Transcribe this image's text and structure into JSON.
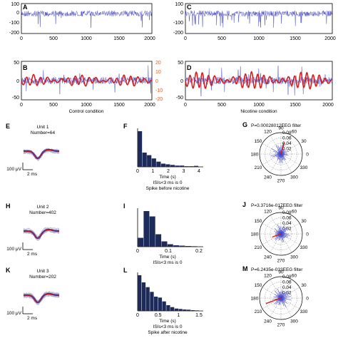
{
  "colors": {
    "blue": "#4a4ec7",
    "red": "#d81e1e",
    "orange": "#e85b1a",
    "navy": "#1d2b5a",
    "grey": "#9aa0b8"
  },
  "traces": {
    "A": {
      "label": "A",
      "ylim": [
        -200,
        100
      ],
      "yticks": [
        "100",
        "0",
        "-100",
        "-200"
      ],
      "xticks": [
        "0",
        "500",
        "1000",
        "1500",
        "2000"
      ],
      "spikes": "few"
    },
    "C": {
      "label": "C",
      "ylim": [
        -200,
        100
      ],
      "yticks": [
        "100",
        "0",
        "-100",
        "-200"
      ],
      "xticks": [
        "0",
        "500",
        "1000",
        "1500",
        "2000"
      ],
      "spikes": "many"
    }
  },
  "filtered": {
    "B": {
      "label": "B",
      "yticks_left": [
        "50",
        "0",
        "-50"
      ],
      "yticks_right": [
        "20",
        "10",
        "0",
        "-10",
        "-20"
      ],
      "xticks": [
        "0",
        "500",
        "1000",
        "1500",
        "2000"
      ],
      "caption": "Control condition"
    },
    "D": {
      "label": "D",
      "yticks_left": [
        "50",
        "0",
        "-50"
      ],
      "yticks_right": [
        "20",
        "10",
        "0",
        "-10",
        "-20"
      ],
      "xticks": [
        "0",
        "500",
        "1000",
        "1500",
        "2000"
      ],
      "caption": "Nicotine condition"
    }
  },
  "units": [
    {
      "label": "E",
      "unit": "Unit 1",
      "number": "Number=64",
      "scale_y": "100 μV",
      "scale_x": "2 ms"
    },
    {
      "label": "H",
      "unit": "Unit 2",
      "number": "Number=402",
      "scale_y": "100 μV",
      "scale_x": "2 ms"
    },
    {
      "label": "K",
      "unit": "Unit 3",
      "number": "Number=202",
      "scale_y": "100 μV",
      "scale_x": "2 ms"
    }
  ],
  "chart_data": [
    {
      "type": "bar",
      "label": "F",
      "values": [
        0.55,
        0.22,
        0.18,
        0.13,
        0.08,
        0.05,
        0.04,
        0.03,
        0.02,
        0.02,
        0.01,
        0.01,
        0.015
      ],
      "xticks": [
        "0",
        "1",
        "2",
        "3",
        "4"
      ],
      "xlim": [
        0,
        4.5
      ],
      "xlabel": "Time (s)",
      "note": "ISIs<3 ms is 0",
      "caption": "Spike before nicotine"
    },
    {
      "type": "bar",
      "label": "I",
      "values": [
        0.25,
        1.0,
        0.85,
        0.35,
        0.15,
        0.07,
        0.04,
        0.03,
        0.02,
        0.015
      ],
      "xticks": [
        "0",
        "0.1",
        "0.2"
      ],
      "xlim": [
        0,
        0.3
      ],
      "xlabel": "Time (s)",
      "note": "ISIs<3 ms is 0",
      "caption": ""
    },
    {
      "type": "bar",
      "label": "L",
      "values": [
        0.75,
        0.6,
        0.5,
        0.4,
        0.3,
        0.28,
        0.2,
        0.12,
        0.08,
        0.05,
        0.04,
        0.03,
        0.025,
        0.015,
        0.01
      ],
      "xticks": [
        "0",
        "0.5",
        "1",
        "1.5"
      ],
      "xlim": [
        0,
        1.6
      ],
      "xlabel": "Time (s)",
      "note": "ISIs<3 ms is 0",
      "caption": "Spike after nicotine"
    }
  ],
  "polar": [
    {
      "label": "G",
      "title": "P=0.00028012EEG filter",
      "rings": [
        "0.02",
        "0.04",
        "0.06",
        "0.08"
      ],
      "angles": [
        "90",
        "120",
        "60",
        "150",
        "30",
        "180",
        "0",
        "210",
        "330",
        "240",
        "300",
        "270"
      ],
      "peak_angle": 75,
      "peak_r": 0.045
    },
    {
      "label": "J",
      "title": "P=3.3716e-017EEG filter",
      "rings": [
        "0.02",
        "0.04",
        "0.06",
        "0.08"
      ],
      "angles": [
        "90",
        "120",
        "60",
        "150",
        "30",
        "180",
        "0",
        "210",
        "330",
        "240",
        "300",
        "270"
      ],
      "peak_angle": 200,
      "peak_r": 0.035
    },
    {
      "label": "M",
      "title": "P=6.2435e-033EEG filter",
      "rings": [
        "0.02",
        "0.04",
        "0.06",
        "0.08"
      ],
      "angles": [
        "90",
        "120",
        "60",
        "150",
        "30",
        "180",
        "0",
        "210",
        "330",
        "240",
        "300",
        "270"
      ],
      "peak_angle": 200,
      "peak_r": 0.06
    }
  ]
}
